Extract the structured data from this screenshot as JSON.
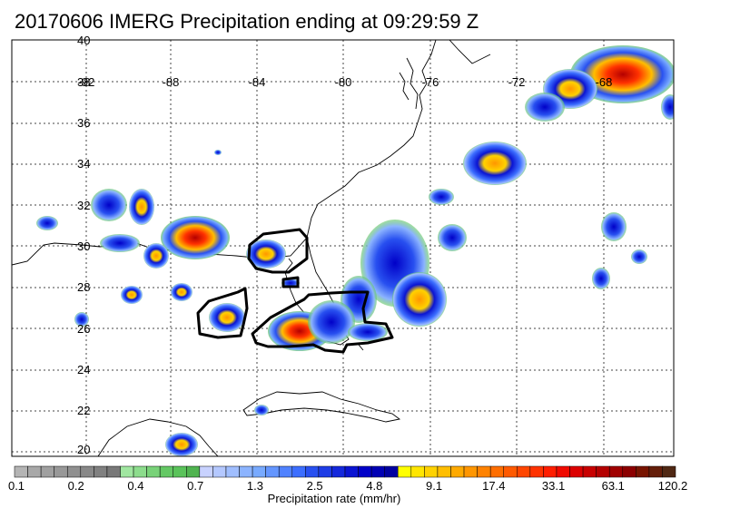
{
  "title": "20170606 IMERG Precipitation ending at 09:29:59 Z",
  "map": {
    "lat_labels": [
      "40",
      "38",
      "36",
      "34",
      "32",
      "30",
      "28",
      "26",
      "24",
      "22",
      "20"
    ],
    "lon_labels": [
      "-92",
      "-88",
      "-84",
      "-80",
      "-76",
      "-72",
      "-68"
    ],
    "grid": true
  },
  "colorbar": {
    "title": "Precipitation rate (mm/hr)",
    "tick_labels": [
      "0.1",
      "0.2",
      "0.4",
      "0.7",
      "1.3",
      "2.5",
      "4.8",
      "9.1",
      "17.4",
      "33.1",
      "63.1",
      "120.2"
    ],
    "colors": [
      "#b4b4b4",
      "#a8a8a8",
      "#a0a0a0",
      "#989898",
      "#909090",
      "#888888",
      "#808080",
      "#787878",
      "#a0e6a0",
      "#8cdc8c",
      "#78d278",
      "#64c864",
      "#5ac35a",
      "#50b450",
      "#c8d2ff",
      "#b4c8ff",
      "#a0beff",
      "#8cb4ff",
      "#78aaff",
      "#6496ff",
      "#5082ff",
      "#3c6eff",
      "#2850f0",
      "#1e3ce6",
      "#1428dc",
      "#0a14d2",
      "#0000c8",
      "#0000b4",
      "#0000a0",
      "#ffff00",
      "#ffe600",
      "#ffd200",
      "#ffbe00",
      "#ffaa00",
      "#ff9600",
      "#ff8200",
      "#ff6e00",
      "#ff5a00",
      "#ff4600",
      "#ff3200",
      "#ff1e00",
      "#f00a00",
      "#dc0000",
      "#c80000",
      "#b40000",
      "#a00000",
      "#8c0000",
      "#781400",
      "#641e0a",
      "#502814"
    ]
  }
}
